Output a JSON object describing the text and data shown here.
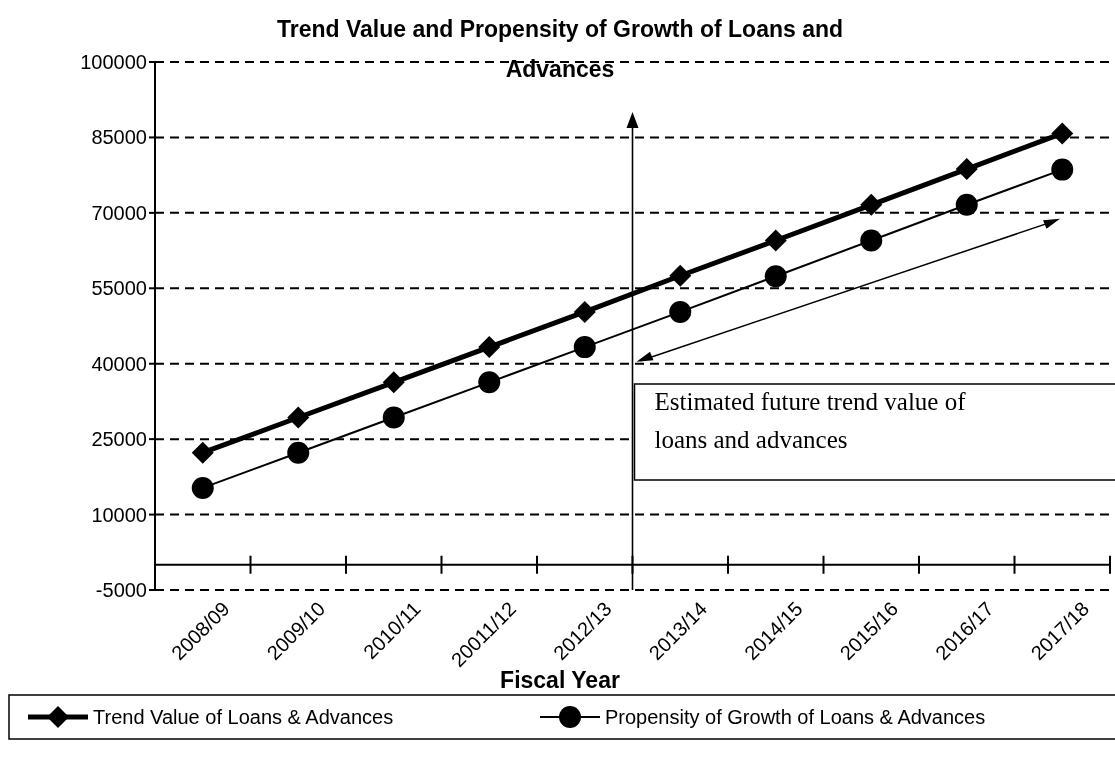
{
  "chart_data": {
    "type": "line",
    "title": "Trend Value and Propensity of Growth of Loans and Advances",
    "xlabel": "Fiscal Year",
    "categories": [
      "2008/09",
      "2009/10",
      "2010/11",
      "20011/12",
      "2012/13",
      "2013/14",
      "2014/15",
      "2015/16",
      "2016/17",
      "2017/18"
    ],
    "series": [
      {
        "name": "Trend Value of Loans & Advances",
        "color": "#000000",
        "marker": "diamond",
        "values": [
          22300,
          29300,
          36300,
          43300,
          50300,
          57500,
          64500,
          71600,
          78700,
          85800
        ]
      },
      {
        "name": "Propensity of Growth of Loans & Advances",
        "color": "#000000",
        "marker": "circle",
        "values": [
          15300,
          22300,
          29300,
          36300,
          43300,
          50300,
          57400,
          64500,
          71600,
          78600
        ]
      }
    ],
    "ylim": [
      -5000,
      100000
    ],
    "yticks": [
      -5000,
      10000,
      25000,
      40000,
      55000,
      70000,
      85000,
      100000
    ],
    "grid": "y",
    "legend": "bottom",
    "line_style": "solid",
    "annotations": [
      "Estimated future trend value of loans and advances"
    ]
  }
}
